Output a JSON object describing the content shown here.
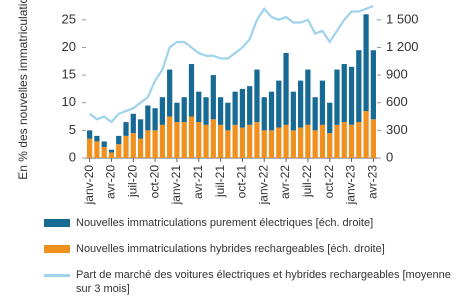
{
  "chart_data": {
    "type": "bar-line",
    "ylabel": "En % des nouvelles immatriculations",
    "categories": [
      "janv-20",
      null,
      null,
      "avr-20",
      null,
      null,
      "juil-20",
      null,
      null,
      "oct-20",
      null,
      null,
      "janv-21",
      null,
      null,
      "avr-21",
      null,
      null,
      "juil-21",
      null,
      null,
      "oct-21",
      null,
      null,
      "janv-22",
      null,
      null,
      "avr-22",
      null,
      null,
      "juil-22",
      null,
      null,
      "oct-22",
      null,
      null,
      "janv-23",
      null,
      null,
      "avr-23"
    ],
    "series": [
      {
        "name": "Nouvelles immatriculations purement électriques [éch. droite]",
        "color": "#176a94",
        "axis": "y2",
        "kind": "bar",
        "values": [
          90,
          60,
          60,
          30,
          90,
          150,
          210,
          210,
          270,
          240,
          300,
          510,
          210,
          270,
          570,
          330,
          300,
          480,
          300,
          300,
          360,
          420,
          420,
          570,
          360,
          420,
          510,
          780,
          420,
          510,
          600,
          360,
          480,
          330,
          600,
          630,
          630,
          780,
          1050,
          750
        ]
      },
      {
        "name": "Nouvelles immatriculations hybrides rechargeables [éch. droite]",
        "color": "#f0901e",
        "axis": "y2",
        "kind": "bar",
        "values": [
          210,
          180,
          120,
          60,
          150,
          240,
          270,
          210,
          300,
          300,
          360,
          450,
          390,
          390,
          450,
          390,
          360,
          420,
          360,
          300,
          360,
          330,
          360,
          390,
          300,
          300,
          330,
          360,
          300,
          330,
          360,
          300,
          360,
          270,
          360,
          390,
          360,
          390,
          510,
          420
        ]
      },
      {
        "name": "Part de marché des voitures électriques et hybrides rechargeables [moyenne sur 3 mois]",
        "color": "#9fd2ec",
        "axis": "y",
        "kind": "line",
        "values": [
          8,
          7,
          7.5,
          6.5,
          8,
          8.5,
          9,
          10,
          11,
          14,
          16,
          20,
          21,
          21,
          20,
          19,
          18.5,
          18.5,
          18,
          18,
          19,
          20,
          21.5,
          25,
          27,
          25.5,
          25,
          25.5,
          24.5,
          24.5,
          25,
          22.5,
          23,
          21,
          23,
          25,
          26.5,
          26.5,
          27,
          27.5
        ]
      }
    ],
    "ylim": [
      0,
      27.5
    ],
    "yticks": [
      0,
      5,
      10,
      15,
      20,
      25
    ],
    "y2lim": [
      0,
      1650
    ],
    "y2ticks": [
      0,
      300,
      600,
      900,
      {
        "value": 1200,
        "label": "1 200"
      },
      {
        "value": 1500,
        "label": "1 500"
      }
    ]
  }
}
